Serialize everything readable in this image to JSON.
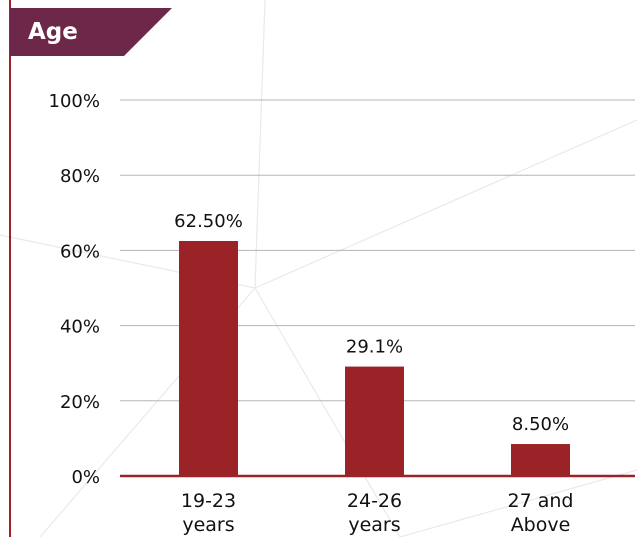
{
  "colors": {
    "bar": "#9b2226",
    "axis": "#9b2226",
    "title_bg": "#6d2748",
    "title_text": "#ffffff",
    "grid": "#b5b5b5"
  },
  "chart_data": {
    "type": "bar",
    "title": "Age",
    "categories": [
      [
        "19-23",
        "years"
      ],
      [
        "24-26",
        "years"
      ],
      [
        "27 and",
        "Above"
      ]
    ],
    "values": [
      62.5,
      29.1,
      8.5
    ],
    "data_labels": [
      "62.50%",
      "29.1%",
      "8.50%"
    ],
    "ylim": [
      0,
      100
    ],
    "y_ticks": [
      0,
      20,
      40,
      60,
      80,
      100
    ],
    "y_tick_labels": [
      "0%",
      "20%",
      "40%",
      "60%",
      "80%",
      "100%"
    ],
    "xlabel": "",
    "ylabel": "",
    "grid": true,
    "legend": "none"
  }
}
